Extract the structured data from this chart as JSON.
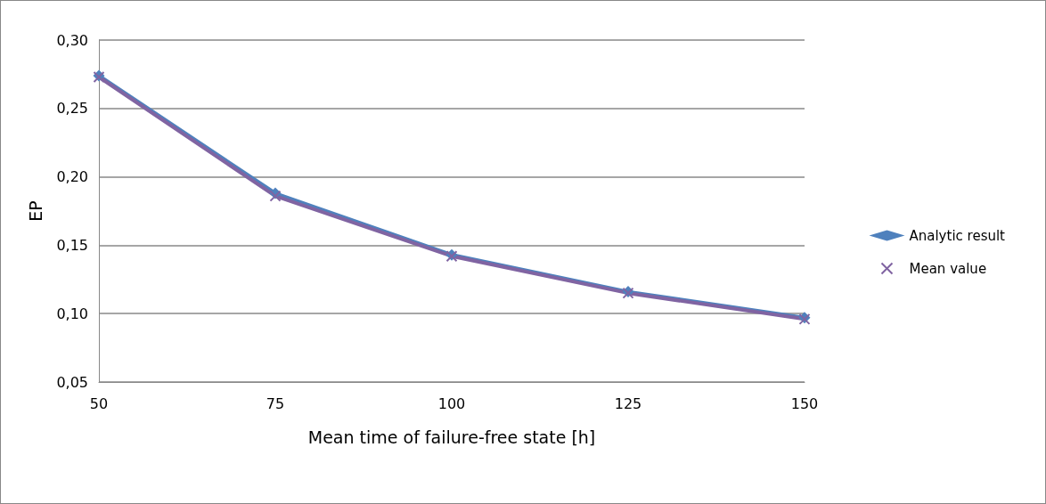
{
  "chart_data": {
    "type": "line",
    "xlabel": "Mean time of failure-free state [h]",
    "ylabel": "EP",
    "categories": [
      "50",
      "75",
      "100",
      "125",
      "150"
    ],
    "series": [
      {
        "name": "Analytic result",
        "color": "#4f81bd",
        "marker": "diamond",
        "values": [
          0.274,
          0.188,
          0.143,
          0.116,
          0.097
        ]
      },
      {
        "name": "Mean value",
        "color": "#8064a2",
        "marker": "cross",
        "values": [
          0.273,
          0.186,
          0.142,
          0.115,
          0.096
        ]
      }
    ],
    "ylim": [
      0.05,
      0.3
    ],
    "yticks": [
      {
        "value": 0.05,
        "label": "0,05"
      },
      {
        "value": 0.1,
        "label": "0,10"
      },
      {
        "value": 0.15,
        "label": "0,15"
      },
      {
        "value": 0.2,
        "label": "0,20"
      },
      {
        "value": 0.25,
        "label": "0,25"
      },
      {
        "value": 0.3,
        "label": "0,30"
      }
    ],
    "grid": "y",
    "legend": "right"
  }
}
